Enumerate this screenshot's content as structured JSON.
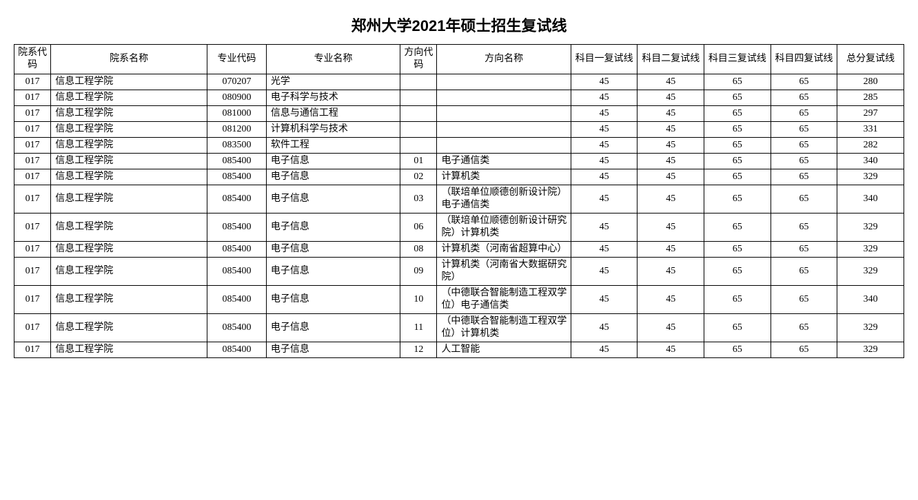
{
  "title": "郑州大学2021年硕士招生复试线",
  "table": {
    "columns": [
      {
        "key": "dept_code",
        "label": "院系代码",
        "class": "col-dept-code",
        "align": "center"
      },
      {
        "key": "dept_name",
        "label": "院系名称",
        "class": "col-dept-name",
        "align": "left"
      },
      {
        "key": "major_code",
        "label": "专业代码",
        "class": "col-major-code",
        "align": "center"
      },
      {
        "key": "major_name",
        "label": "专业名称",
        "class": "col-major-name",
        "align": "left"
      },
      {
        "key": "dir_code",
        "label": "方向代码",
        "class": "col-dir-code",
        "align": "center"
      },
      {
        "key": "dir_name",
        "label": "方向名称",
        "class": "col-dir-name",
        "align": "left"
      },
      {
        "key": "s1",
        "label": "科目一复试线",
        "class": "col-score",
        "align": "center"
      },
      {
        "key": "s2",
        "label": "科目二复试线",
        "class": "col-score",
        "align": "center"
      },
      {
        "key": "s3",
        "label": "科目三复试线",
        "class": "col-score",
        "align": "center"
      },
      {
        "key": "s4",
        "label": "科目四复试线",
        "class": "col-score",
        "align": "center"
      },
      {
        "key": "total",
        "label": "总分复试线",
        "class": "col-total",
        "align": "center"
      }
    ],
    "rows": [
      {
        "dept_code": "017",
        "dept_name": "信息工程学院",
        "major_code": "070207",
        "major_name": "光学",
        "dir_code": "",
        "dir_name": "",
        "s1": "45",
        "s2": "45",
        "s3": "65",
        "s4": "65",
        "total": "280"
      },
      {
        "dept_code": "017",
        "dept_name": "信息工程学院",
        "major_code": "080900",
        "major_name": "电子科学与技术",
        "dir_code": "",
        "dir_name": "",
        "s1": "45",
        "s2": "45",
        "s3": "65",
        "s4": "65",
        "total": "285"
      },
      {
        "dept_code": "017",
        "dept_name": "信息工程学院",
        "major_code": "081000",
        "major_name": "信息与通信工程",
        "dir_code": "",
        "dir_name": "",
        "s1": "45",
        "s2": "45",
        "s3": "65",
        "s4": "65",
        "total": "297"
      },
      {
        "dept_code": "017",
        "dept_name": "信息工程学院",
        "major_code": "081200",
        "major_name": "计算机科学与技术",
        "dir_code": "",
        "dir_name": "",
        "s1": "45",
        "s2": "45",
        "s3": "65",
        "s4": "65",
        "total": "331"
      },
      {
        "dept_code": "017",
        "dept_name": "信息工程学院",
        "major_code": "083500",
        "major_name": "软件工程",
        "dir_code": "",
        "dir_name": "",
        "s1": "45",
        "s2": "45",
        "s3": "65",
        "s4": "65",
        "total": "282"
      },
      {
        "dept_code": "017",
        "dept_name": "信息工程学院",
        "major_code": "085400",
        "major_name": "电子信息",
        "dir_code": "01",
        "dir_name": "电子通信类",
        "s1": "45",
        "s2": "45",
        "s3": "65",
        "s4": "65",
        "total": "340"
      },
      {
        "dept_code": "017",
        "dept_name": "信息工程学院",
        "major_code": "085400",
        "major_name": "电子信息",
        "dir_code": "02",
        "dir_name": "计算机类",
        "s1": "45",
        "s2": "45",
        "s3": "65",
        "s4": "65",
        "total": "329"
      },
      {
        "dept_code": "017",
        "dept_name": "信息工程学院",
        "major_code": "085400",
        "major_name": "电子信息",
        "dir_code": "03",
        "dir_name": "（联培单位顺德创新设计院）电子通信类",
        "s1": "45",
        "s2": "45",
        "s3": "65",
        "s4": "65",
        "total": "340",
        "multiline": true
      },
      {
        "dept_code": "017",
        "dept_name": "信息工程学院",
        "major_code": "085400",
        "major_name": "电子信息",
        "dir_code": "06",
        "dir_name": "（联培单位顺德创新设计研究院）计算机类",
        "s1": "45",
        "s2": "45",
        "s3": "65",
        "s4": "65",
        "total": "329",
        "multiline": true
      },
      {
        "dept_code": "017",
        "dept_name": "信息工程学院",
        "major_code": "085400",
        "major_name": "电子信息",
        "dir_code": "08",
        "dir_name": "计算机类（河南省超算中心）",
        "s1": "45",
        "s2": "45",
        "s3": "65",
        "s4": "65",
        "total": "329",
        "multiline": true
      },
      {
        "dept_code": "017",
        "dept_name": "信息工程学院",
        "major_code": "085400",
        "major_name": "电子信息",
        "dir_code": "09",
        "dir_name": "计算机类（河南省大数据研究院）",
        "s1": "45",
        "s2": "45",
        "s3": "65",
        "s4": "65",
        "total": "329",
        "multiline": true
      },
      {
        "dept_code": "017",
        "dept_name": "信息工程学院",
        "major_code": "085400",
        "major_name": "电子信息",
        "dir_code": "10",
        "dir_name": "（中德联合智能制造工程双学位）电子通信类",
        "s1": "45",
        "s2": "45",
        "s3": "65",
        "s4": "65",
        "total": "340",
        "multiline": true
      },
      {
        "dept_code": "017",
        "dept_name": "信息工程学院",
        "major_code": "085400",
        "major_name": "电子信息",
        "dir_code": "11",
        "dir_name": "（中德联合智能制造工程双学位）计算机类",
        "s1": "45",
        "s2": "45",
        "s3": "65",
        "s4": "65",
        "total": "329",
        "multiline": true
      },
      {
        "dept_code": "017",
        "dept_name": "信息工程学院",
        "major_code": "085400",
        "major_name": "电子信息",
        "dir_code": "12",
        "dir_name": "人工智能",
        "s1": "45",
        "s2": "45",
        "s3": "65",
        "s4": "65",
        "total": "329"
      }
    ]
  }
}
